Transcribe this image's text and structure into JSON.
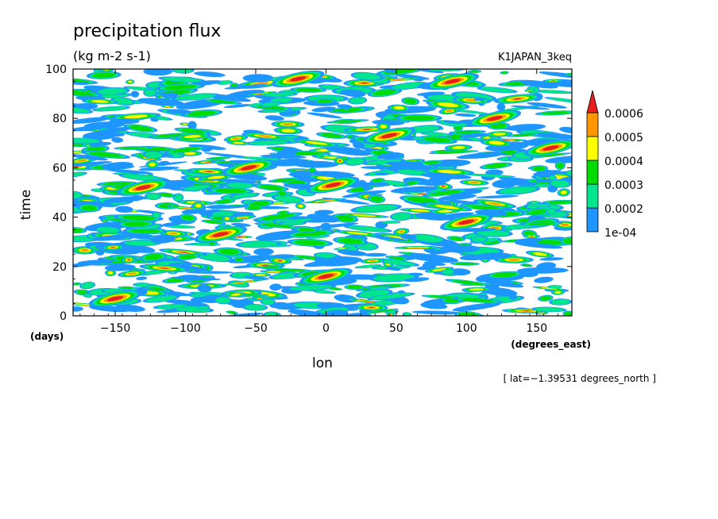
{
  "chart_data": {
    "type": "heatmap",
    "title": "precipitation flux",
    "units": "(kg m-2 s-1)",
    "dataset": "K1JAPAN_3keq",
    "xlabel": "lon",
    "xunit": "(degrees_east)",
    "ylabel": "time",
    "yunit": "(days)",
    "xlim": [
      -180,
      175
    ],
    "ylim": [
      0,
      100
    ],
    "xticks": [
      -150,
      -100,
      -50,
      0,
      50,
      100,
      150
    ],
    "yticks": [
      0,
      20,
      40,
      60,
      80,
      100
    ],
    "xtick_labels": [
      "−150",
      "−100",
      "−50",
      "0",
      "50",
      "100",
      "150"
    ],
    "ytick_labels": [
      "0",
      "20",
      "40",
      "60",
      "80",
      "100"
    ],
    "annotation": "[ lat=−1.39531 degrees_north ]",
    "colorbar": {
      "levels": [
        0.0001,
        0.0002,
        0.0003,
        0.0004,
        0.0005,
        0.0006
      ],
      "labels": [
        "1e-04",
        "0.0002",
        "0.0003",
        "0.0004",
        "0.0005",
        "0.0006"
      ],
      "colors": [
        "#1e96ff",
        "#00e68c",
        "#00dc00",
        "#ffff00",
        "#ff9600",
        "#e61e1e"
      ],
      "extend": "max"
    },
    "features": [
      {
        "lon": 5,
        "time": 53,
        "level": 5
      },
      {
        "lon": 0,
        "time": 16,
        "level": 5
      },
      {
        "lon": -130,
        "time": 52,
        "level": 5
      },
      {
        "lon": 90,
        "time": 95,
        "level": 5
      },
      {
        "lon": -75,
        "time": 33,
        "level": 5
      },
      {
        "lon": 45,
        "time": 73,
        "level": 5
      },
      {
        "lon": 100,
        "time": 38,
        "level": 5
      },
      {
        "lon": -55,
        "time": 60,
        "level": 5
      },
      {
        "lon": 120,
        "time": 80,
        "level": 5
      },
      {
        "lon": -150,
        "time": 7,
        "level": 5
      },
      {
        "lon": 160,
        "time": 68,
        "level": 5
      },
      {
        "lon": -20,
        "time": 96,
        "level": 5
      }
    ]
  }
}
